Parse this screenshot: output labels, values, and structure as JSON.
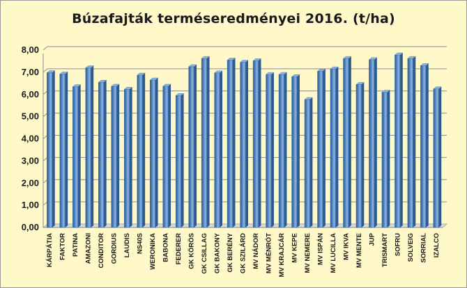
{
  "chart_data": {
    "type": "bar",
    "title": "Búzafajták terméseredményei 2016. (t/ha)",
    "xlabel": "",
    "ylabel": "",
    "ylim": [
      0,
      8
    ],
    "ytick_step": 1,
    "yticks": [
      "0,00",
      "1,00",
      "2,00",
      "3,00",
      "4,00",
      "5,00",
      "6,00",
      "7,00",
      "8,00"
    ],
    "grid": true,
    "legend": "none",
    "colors": {
      "bar": "#4f81bd",
      "bar_light": "#8db3e2",
      "bar_dark": "#2c5a8f",
      "background": "#fff8c8",
      "gridline": "#8c8c8c",
      "floor": "#d9d9d9"
    },
    "categories": [
      "KÁRPÁTIA",
      "FAKTOR",
      "PATINA",
      "AMAZONI",
      "CONDITOR",
      "GORDIUS",
      "LAUDIS",
      "NS40S",
      "WERONIKA",
      "BABONA",
      "FEDERER",
      "GK KÖRÖS",
      "GK CSILLAG",
      "GK BAKONY",
      "GK BERÉNY",
      "GK SZILÁRD",
      "MV NÁDOR",
      "MV MÉNRÓT",
      "MV KRAJCÁR",
      "MV KEPE",
      "MV NEMERE",
      "MV ISPÁN",
      "MV LUCILLA",
      "MV IKVA",
      "MV MENTE",
      "JUP",
      "TRISMART",
      "SOFRU",
      "SOLVEIG",
      "SORRIAL",
      "IZALCO"
    ],
    "values": [
      6.98,
      6.92,
      6.35,
      7.2,
      6.55,
      6.37,
      6.23,
      6.87,
      6.65,
      6.37,
      5.95,
      7.25,
      7.62,
      6.97,
      7.55,
      7.45,
      7.52,
      6.9,
      6.9,
      6.8,
      5.77,
      7.05,
      7.15,
      7.62,
      6.45,
      7.57,
      6.1,
      7.78,
      7.62,
      7.3,
      6.25
    ]
  }
}
